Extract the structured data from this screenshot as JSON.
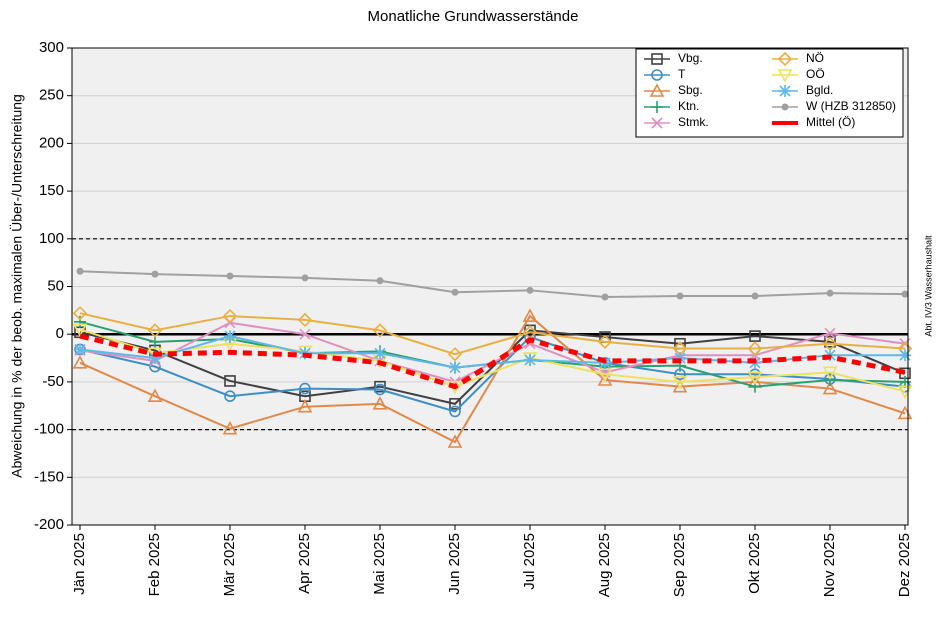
{
  "chart_data": {
    "type": "line",
    "title": "Monatliche Grundwasserstände",
    "y_label": "Abweichung in % der beob. maximalen Über-/Unterschreitung",
    "annotation": "Abt. IV/3 Wasserhaushalt",
    "categories": [
      "Jän 2025",
      "Feb 2025",
      "Mär 2025",
      "Apr 2025",
      "Mai 2025",
      "Jun 2025",
      "Jul 2025",
      "Aug 2025",
      "Sep 2025",
      "Okt 2025",
      "Nov 2025",
      "Dez 2025"
    ],
    "ylim": [
      -200,
      300
    ],
    "yticks": [
      -200,
      -150,
      -100,
      -50,
      0,
      50,
      100,
      150,
      200,
      250,
      300
    ],
    "grid": true,
    "legend": "upper right",
    "reference_lines": [
      {
        "value": 100,
        "style": "dashed"
      },
      {
        "value": -100,
        "style": "dashed"
      },
      {
        "value": 0,
        "style": "solid"
      }
    ],
    "series": [
      {
        "name": "Vbg.",
        "color": "#404040",
        "marker": "square",
        "values": [
          2,
          -17,
          -49,
          -65,
          -55,
          -73,
          4,
          -3,
          -10,
          -2,
          -8,
          -41
        ]
      },
      {
        "name": "T",
        "color": "#3d8fc6",
        "marker": "circle",
        "values": [
          -16,
          -34,
          -65,
          -57,
          -58,
          -81,
          -3,
          -30,
          -42,
          -42,
          -47,
          -55
        ]
      },
      {
        "name": "Sbg.",
        "color": "#e0894a",
        "marker": "triangle",
        "values": [
          -30,
          -65,
          -99,
          -76,
          -73,
          -113,
          19,
          -48,
          -55,
          -50,
          -57,
          -83
        ]
      },
      {
        "name": "Ktn.",
        "color": "#2aa070",
        "marker": "plus",
        "values": [
          13,
          -8,
          -5,
          -20,
          -18,
          -35,
          -27,
          -34,
          -33,
          -55,
          -48,
          -50
        ]
      },
      {
        "name": "Stmk.",
        "color": "#e090c0",
        "marker": "x",
        "values": [
          -17,
          -28,
          12,
          0,
          -28,
          -50,
          -10,
          -40,
          -22,
          -22,
          1,
          -10
        ]
      },
      {
        "name": "NÖ",
        "color": "#e8b040",
        "marker": "diamond",
        "values": [
          22,
          4,
          19,
          15,
          4,
          -21,
          2,
          -8,
          -15,
          -15,
          -10,
          -15
        ]
      },
      {
        "name": "OÖ",
        "color": "#eee060",
        "marker": "triangle-down",
        "values": [
          5,
          -20,
          -10,
          -18,
          -28,
          -55,
          -25,
          -42,
          -50,
          -45,
          -40,
          -60
        ]
      },
      {
        "name": "Bgld.",
        "color": "#60b8e8",
        "marker": "star",
        "values": [
          -16,
          -25,
          -2,
          -20,
          -20,
          -35,
          -27,
          -30,
          -25,
          -30,
          -22,
          -22
        ]
      },
      {
        "name": "W (HZB 312850)",
        "color": "#a0a0a0",
        "marker": "dot",
        "values": [
          66,
          63,
          61,
          59,
          56,
          44,
          46,
          39,
          40,
          40,
          43,
          42
        ]
      },
      {
        "name": "Mittel (Ö)",
        "color": "#ff0000",
        "marker": "none",
        "style": "dashed",
        "values": [
          -2,
          -21,
          -19,
          -22,
          -30,
          -55,
          -6,
          -28,
          -28,
          -28,
          -24,
          -40
        ]
      }
    ]
  }
}
